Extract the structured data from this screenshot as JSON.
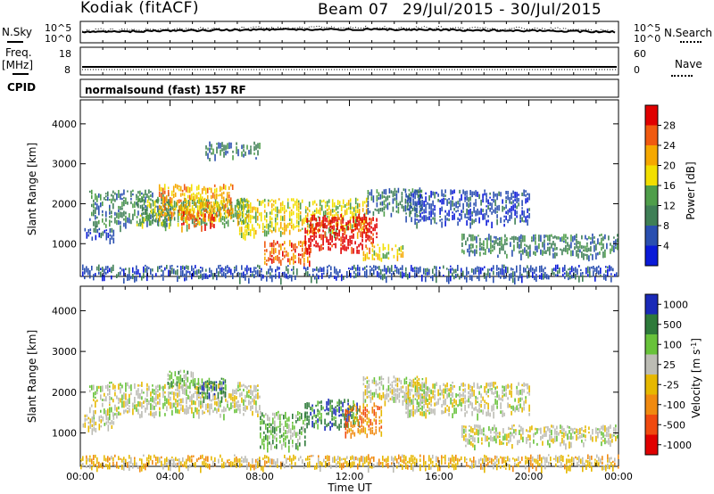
{
  "header": {
    "station": "Kodiak (fitACF)",
    "beam": "Beam 07",
    "date_range": "29/Jul/2015 - 30/Jul/2015"
  },
  "strips": {
    "nsky_label": "N.Sky",
    "nsky_top": "10^5",
    "nsky_bottom": "10^0",
    "nsearch_label": "N.Search",
    "nsearch_top": "10^5",
    "nsearch_bottom": "10^0",
    "freq_label": "Freq.",
    "freq_unit": "[MHz]",
    "freq_top": "18",
    "freq_bottom": "8",
    "nave_label": "Nave",
    "nave_top": "60",
    "nave_bottom": "0",
    "cpid_label": "CPID",
    "cpid_text": "normalsound (fast) 157 RF"
  },
  "colors": {
    "power": [
      "#0a1ad8",
      "#2a4fb0",
      "#3f7f56",
      "#4f9e4a",
      "#f2df00",
      "#f5a800",
      "#f05a10",
      "#e00000"
    ],
    "velocity": [
      "#1a2ab8",
      "#2e7a3a",
      "#68c23a",
      "#bcbcb4",
      "#e6b800",
      "#f08a10",
      "#f04a10",
      "#e00000"
    ]
  },
  "chart_data": [
    {
      "type": "heatmap",
      "panel": "power",
      "ylabel": "Slant Range [km]",
      "ylim": [
        180,
        4600
      ],
      "yticks": [
        1000,
        2000,
        3000,
        4000
      ],
      "xlim": [
        "00:00",
        "24:00"
      ],
      "colorbar_label": "Power [dB]",
      "colorbar_ticks": [
        "4",
        "8",
        "12",
        "16",
        "20",
        "24",
        "28"
      ],
      "regions": [
        {
          "t0": 0.1,
          "t1": 1.5,
          "r0": 1150,
          "r1": 1400,
          "level": 1
        },
        {
          "t0": 0.4,
          "t1": 4.0,
          "r0": 1500,
          "r1": 2300,
          "level": 2
        },
        {
          "t0": 2.5,
          "t1": 7.5,
          "r0": 1500,
          "r1": 2100,
          "level": 3
        },
        {
          "t0": 3.5,
          "t1": 6.8,
          "r0": 1700,
          "r1": 2450,
          "level": 5
        },
        {
          "t0": 4.5,
          "t1": 6.0,
          "r0": 1450,
          "r1": 1800,
          "level": 6
        },
        {
          "t0": 7.0,
          "t1": 12.8,
          "r0": 1300,
          "r1": 2100,
          "level": 4
        },
        {
          "t0": 8.2,
          "t1": 10.2,
          "r0": 550,
          "r1": 1050,
          "level": 6
        },
        {
          "t0": 10.0,
          "t1": 13.2,
          "r0": 900,
          "r1": 1700,
          "level": 7
        },
        {
          "t0": 5.5,
          "t1": 8.0,
          "r0": 3200,
          "r1": 3500,
          "level": 2
        },
        {
          "t0": 12.6,
          "t1": 14.4,
          "r0": 650,
          "r1": 950,
          "level": 4
        },
        {
          "t0": 12.8,
          "t1": 15.2,
          "r0": 1800,
          "r1": 2350,
          "level": 2
        },
        {
          "t0": 14.5,
          "t1": 20.0,
          "r0": 1550,
          "r1": 2300,
          "level": 1
        },
        {
          "t0": 17.0,
          "t1": 24.0,
          "r0": 750,
          "r1": 1200,
          "level": 2
        },
        {
          "t0": 0.0,
          "t1": 24.0,
          "r0": 180,
          "r1": 420,
          "level": 1
        }
      ]
    },
    {
      "type": "heatmap",
      "panel": "velocity",
      "ylabel": "Slant Range [km]",
      "xlabel": "Time UT",
      "ylim": [
        180,
        4600
      ],
      "yticks": [
        1000,
        2000,
        3000,
        4000
      ],
      "xticks": [
        "00:00",
        "04:00",
        "08:00",
        "12:00",
        "16:00",
        "20:00",
        "00:00"
      ],
      "colorbar_label": "Velocity [m s^-1]",
      "colorbar_ticks": [
        "1000",
        "500",
        "100",
        "25",
        "-25",
        "-100",
        "-500",
        "-1000"
      ],
      "regions": [
        {
          "t0": 0.1,
          "t1": 1.5,
          "r0": 1150,
          "r1": 1400,
          "level": 3
        },
        {
          "t0": 0.4,
          "t1": 8.0,
          "r0": 1500,
          "r1": 2200,
          "level": 3
        },
        {
          "t0": 3.8,
          "t1": 5.0,
          "r0": 2200,
          "r1": 2500,
          "level": 2
        },
        {
          "t0": 5.0,
          "t1": 6.5,
          "r0": 1900,
          "r1": 2300,
          "level": 1
        },
        {
          "t0": 8.0,
          "t1": 10.0,
          "r0": 700,
          "r1": 1500,
          "level": 2
        },
        {
          "t0": 10.0,
          "t1": 12.4,
          "r0": 1200,
          "r1": 1800,
          "level": 1
        },
        {
          "t0": 11.8,
          "t1": 13.4,
          "r0": 1000,
          "r1": 1700,
          "level": 5
        },
        {
          "t0": 12.6,
          "t1": 15.4,
          "r0": 1800,
          "r1": 2350,
          "level": 3
        },
        {
          "t0": 14.5,
          "t1": 20.0,
          "r0": 1500,
          "r1": 2200,
          "level": 3
        },
        {
          "t0": 17.0,
          "t1": 24.0,
          "r0": 750,
          "r1": 1150,
          "level": 3
        },
        {
          "t0": 0.0,
          "t1": 24.0,
          "r0": 180,
          "r1": 420,
          "level": 4
        }
      ]
    }
  ]
}
